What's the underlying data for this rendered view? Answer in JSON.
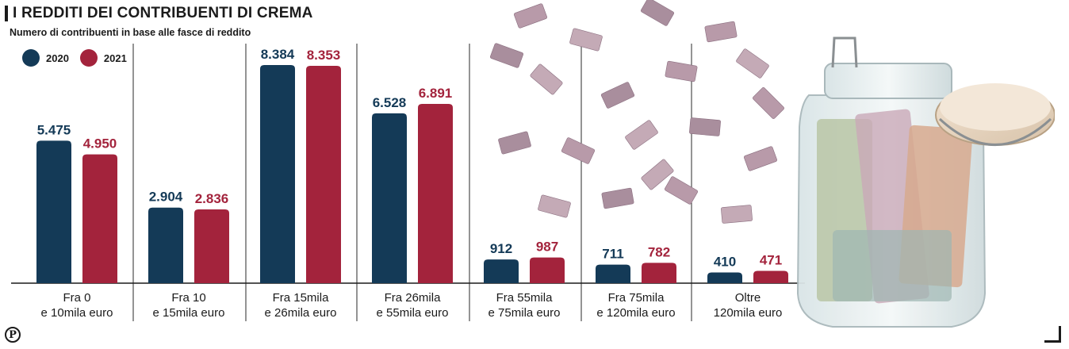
{
  "header": {
    "title": "I REDDITI DEI CONTRIBUENTI DI CREMA",
    "subtitle": "Numero di contribuenti in base alle fasce di reddito"
  },
  "legend": [
    {
      "label": "2020",
      "color": "#143a57"
    },
    {
      "label": "2021",
      "color": "#a3233c"
    }
  ],
  "chart_data": {
    "type": "bar",
    "title": "I REDDITI DEI CONTRIBUENTI DI CREMA",
    "subtitle": "Numero di contribuenti in base alle fasce di reddito",
    "categories": [
      [
        "Fra 0",
        "e 10mila euro"
      ],
      [
        "Fra 10",
        "e 15mila euro"
      ],
      [
        "Fra 15mila",
        "e 26mila euro"
      ],
      [
        "Fra 26mila",
        "e 55mila euro"
      ],
      [
        "Fra 55mila",
        "e 75mila euro"
      ],
      [
        "Fra 75mila",
        "e 120mila euro"
      ],
      [
        "Oltre",
        "120mila euro"
      ]
    ],
    "series": [
      {
        "name": "2020",
        "color": "#143a57",
        "values": [
          5475,
          2904,
          8384,
          6528,
          912,
          711,
          410
        ],
        "labels": [
          "5.475",
          "2.904",
          "8.384",
          "6.528",
          "912",
          "711",
          "410"
        ]
      },
      {
        "name": "2021",
        "color": "#a3233c",
        "values": [
          4950,
          2836,
          8353,
          6891,
          987,
          782,
          471
        ],
        "labels": [
          "4.950",
          "2.836",
          "8.353",
          "6.891",
          "987",
          "782",
          "471"
        ]
      }
    ],
    "ylim": [
      0,
      8384
    ],
    "grid": false,
    "legend_position": "top-left"
  },
  "decor": {
    "banknote_icon": "banknote-icon",
    "jar_icon": "money-jar-icon",
    "publisher_logo": "P"
  }
}
